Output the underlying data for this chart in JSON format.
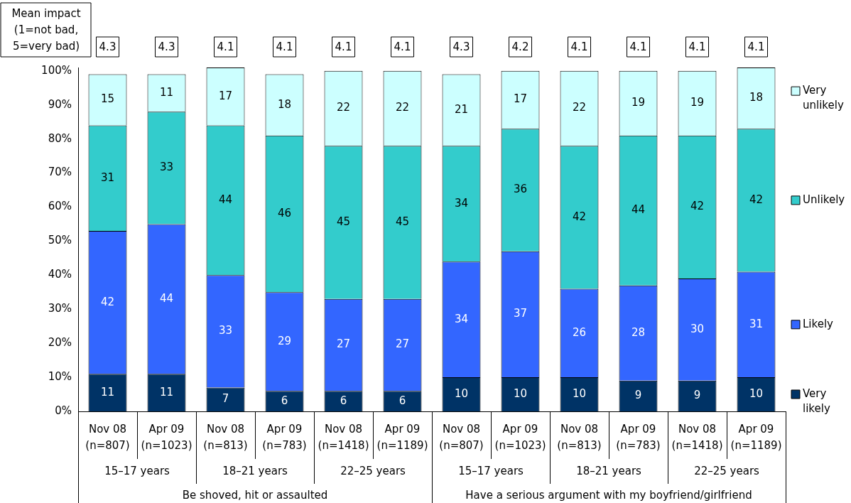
{
  "chart_data": {
    "type": "bar",
    "stacked": true,
    "data_labels": true,
    "legend": "right",
    "grid": false,
    "categories": [
      "Nov 08\n(n=807)",
      "Apr 09\n(n=1023)",
      "Nov 08\n(n=813)",
      "Apr 09\n(n=783)",
      "Nov 08\n(n=1418)",
      "Apr 09\n(n=1189)",
      "Nov 08\n(n=807)",
      "Apr 09\n(n=1023)",
      "Nov 08\n(n=813)",
      "Apr 09\n(n=783)",
      "Nov 08\n(n=1418)",
      "Apr 09\n(n=1189)"
    ],
    "series": [
      {
        "name": "Very likely",
        "color": "#003366",
        "values": [
          11,
          11,
          7,
          6,
          6,
          6,
          10,
          10,
          10,
          9,
          9,
          10
        ]
      },
      {
        "name": "Likely",
        "color": "#3366ff",
        "values": [
          42,
          44,
          33,
          29,
          27,
          27,
          34,
          37,
          26,
          28,
          30,
          31
        ]
      },
      {
        "name": "Unlikely",
        "color": "#33cccc",
        "values": [
          31,
          33,
          44,
          46,
          45,
          45,
          34,
          36,
          42,
          44,
          42,
          42
        ]
      },
      {
        "name": "Very unlikely",
        "color": "#ccffff",
        "values": [
          15,
          11,
          17,
          18,
          22,
          22,
          21,
          17,
          22,
          19,
          19,
          18
        ]
      }
    ],
    "ylim": [
      0,
      101
    ],
    "yticks": [
      {
        "value": 0,
        "label": "0%"
      },
      {
        "value": 10,
        "label": "10%"
      },
      {
        "value": 20,
        "label": "20%"
      },
      {
        "value": 30,
        "label": "30%"
      },
      {
        "value": 40,
        "label": "40%"
      },
      {
        "value": 50,
        "label": "50%"
      },
      {
        "value": 60,
        "label": "60%"
      },
      {
        "value": 70,
        "label": "70%"
      },
      {
        "value": 80,
        "label": "80%"
      },
      {
        "value": 90,
        "label": "90%"
      },
      {
        "value": 100,
        "label": "100%"
      }
    ],
    "annotations": [
      "Mean impact\n(1=not bad,\n5=very bad)",
      "4.3",
      "4.3",
      "4.1",
      "4.1",
      "4.1",
      "4.1",
      "4.3",
      "4.2",
      "4.1",
      "4.1",
      "4.1",
      "4.1",
      "15–17 years",
      "18–21 years",
      "22–25 years",
      "15–17 years",
      "18–21 years",
      "22–25 years",
      "Be shoved, hit or assaulted",
      "Have a serious argument with my boyfriend/girlfriend"
    ]
  }
}
